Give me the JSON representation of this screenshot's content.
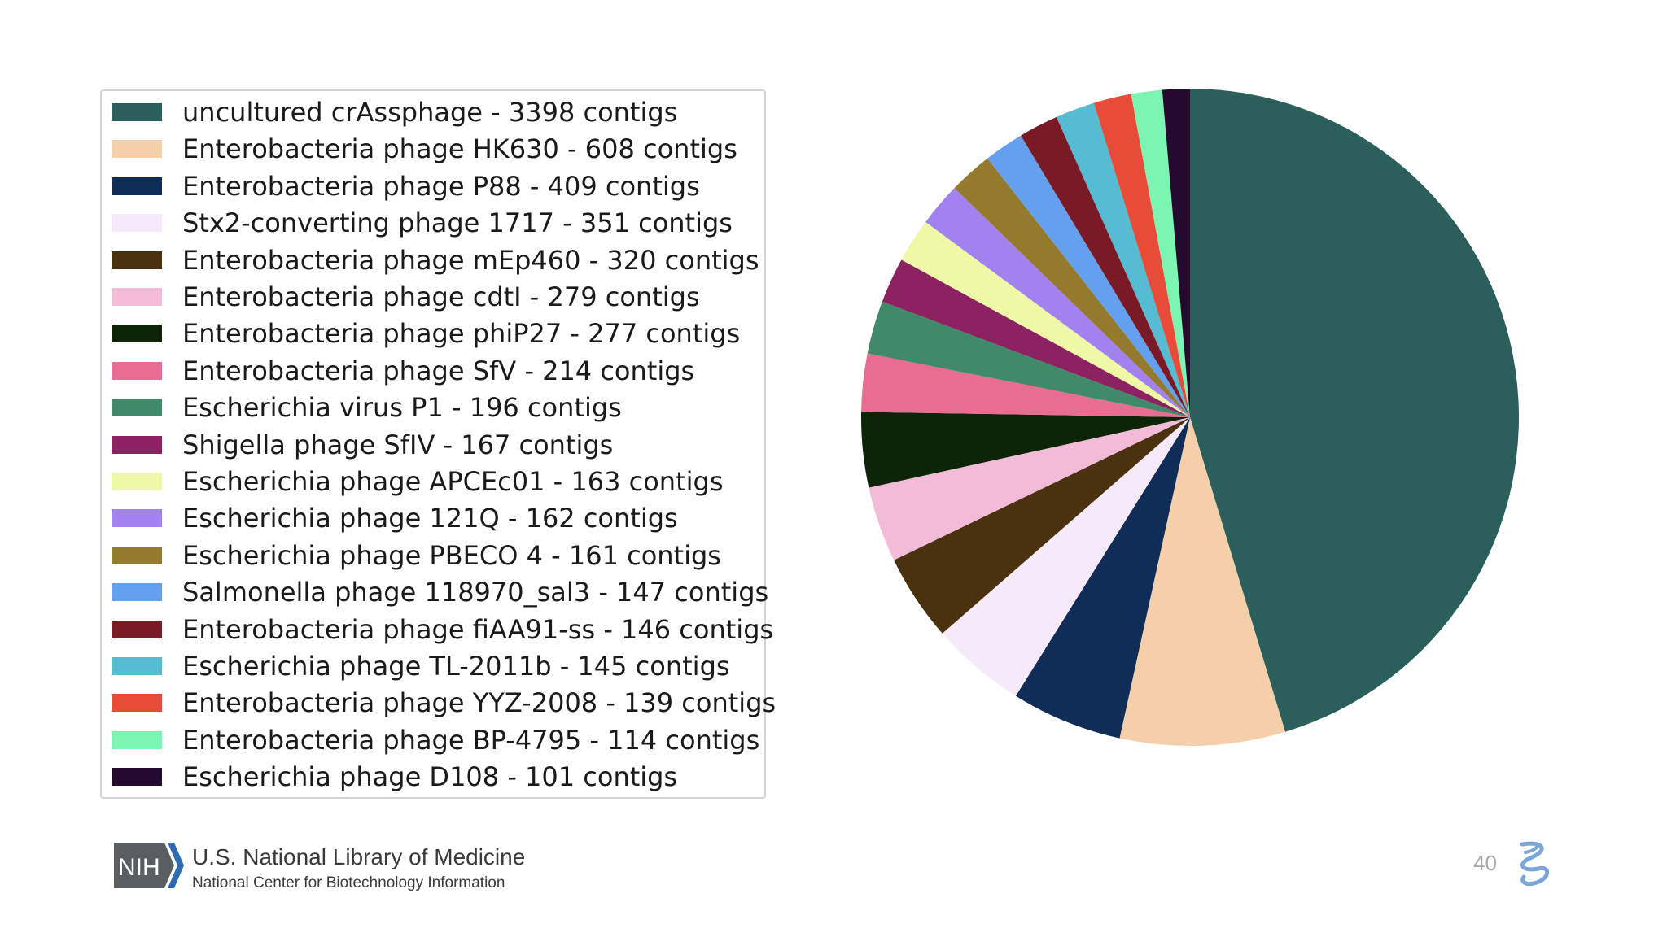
{
  "chart_data": {
    "type": "pie",
    "slices": [
      {
        "label": "uncultured crAssphage - 3398 contigs",
        "value": 3398,
        "color": "#2a5f5b"
      },
      {
        "label": "Enterobacteria phage HK630 - 608 contigs",
        "value": 608,
        "color": "#f5cfa9"
      },
      {
        "label": "Enterobacteria phage P88 - 409 contigs",
        "value": 409,
        "color": "#0f2d57"
      },
      {
        "label": "Stx2-converting phage 1717 - 351 contigs",
        "value": 351,
        "color": "#f6eafa"
      },
      {
        "label": "Enterobacteria phage mEp460 - 320 contigs",
        "value": 320,
        "color": "#4a3210"
      },
      {
        "label": "Enterobacteria phage cdtI - 279 contigs",
        "value": 279,
        "color": "#f2bcd9"
      },
      {
        "label": "Enterobacteria phage phiP27 - 277 contigs",
        "value": 277,
        "color": "#0d2408"
      },
      {
        "label": "Enterobacteria phage SfV - 214 contigs",
        "value": 214,
        "color": "#e76d92"
      },
      {
        "label": "Escherichia virus P1 - 196 contigs",
        "value": 196,
        "color": "#3f8a68"
      },
      {
        "label": "Shigella phage SfIV - 167 contigs",
        "value": 167,
        "color": "#8c2262"
      },
      {
        "label": "Escherichia phage APCEc01 - 163 contigs",
        "value": 163,
        "color": "#eef8a6"
      },
      {
        "label": "Escherichia phage 121Q - 162 contigs",
        "value": 162,
        "color": "#a182ef"
      },
      {
        "label": "Escherichia phage PBECO 4 - 161 contigs",
        "value": 161,
        "color": "#947a2c"
      },
      {
        "label": "Salmonella phage 118970_sal3 - 147 contigs",
        "value": 147,
        "color": "#65a0ee"
      },
      {
        "label": "Enterobacteria phage fiAA91-ss - 146 contigs",
        "value": 146,
        "color": "#7a1a26"
      },
      {
        "label": "Escherichia phage TL-2011b - 145 contigs",
        "value": 145,
        "color": "#56bcd2"
      },
      {
        "label": "Enterobacteria phage YYZ-2008 - 139 contigs",
        "value": 139,
        "color": "#e84b38"
      },
      {
        "label": "Enterobacteria phage BP-4795 - 114 contigs",
        "value": 114,
        "color": "#7df5b2"
      },
      {
        "label": "Escherichia phage D108 - 101 contigs",
        "value": 101,
        "color": "#250a30"
      }
    ],
    "start_angle": "12 o'clock",
    "direction": "clockwise",
    "legend_placement": "left"
  },
  "footer": {
    "logo_text": "NIH",
    "organization": "U.S. National Library of Medicine",
    "suborganization": "National Center for Biotechnology Information",
    "page_number": "40"
  },
  "colors": {
    "nih_logo_bg": "#5a5d62",
    "nih_logo_accent": "#2d6cb5",
    "swirl": "#7aa6d8"
  },
  "icons": {
    "ncbi_logo": "ncbi-helix-icon"
  }
}
